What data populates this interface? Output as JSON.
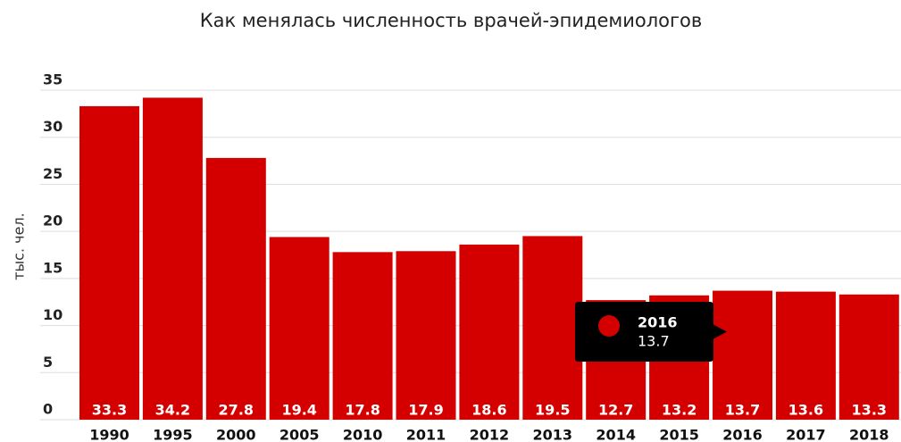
{
  "chart_data": {
    "type": "bar",
    "title": "Как менялась численность врачей-эпидемиологов",
    "y_label": "тыс. чел.",
    "categories": [
      "1990",
      "1995",
      "2000",
      "2005",
      "2010",
      "2011",
      "2012",
      "2013",
      "2014",
      "2015",
      "2016",
      "2017",
      "2018"
    ],
    "values": [
      33.3,
      34.2,
      27.8,
      19.4,
      17.8,
      17.9,
      18.6,
      19.5,
      12.7,
      13.2,
      13.7,
      13.6,
      13.3
    ],
    "color": "#d40000",
    "ylim": [
      0,
      35
    ],
    "yticks": [
      0,
      5,
      10,
      15,
      20,
      25,
      30,
      35
    ],
    "grid": true,
    "tooltip_index": 10
  }
}
